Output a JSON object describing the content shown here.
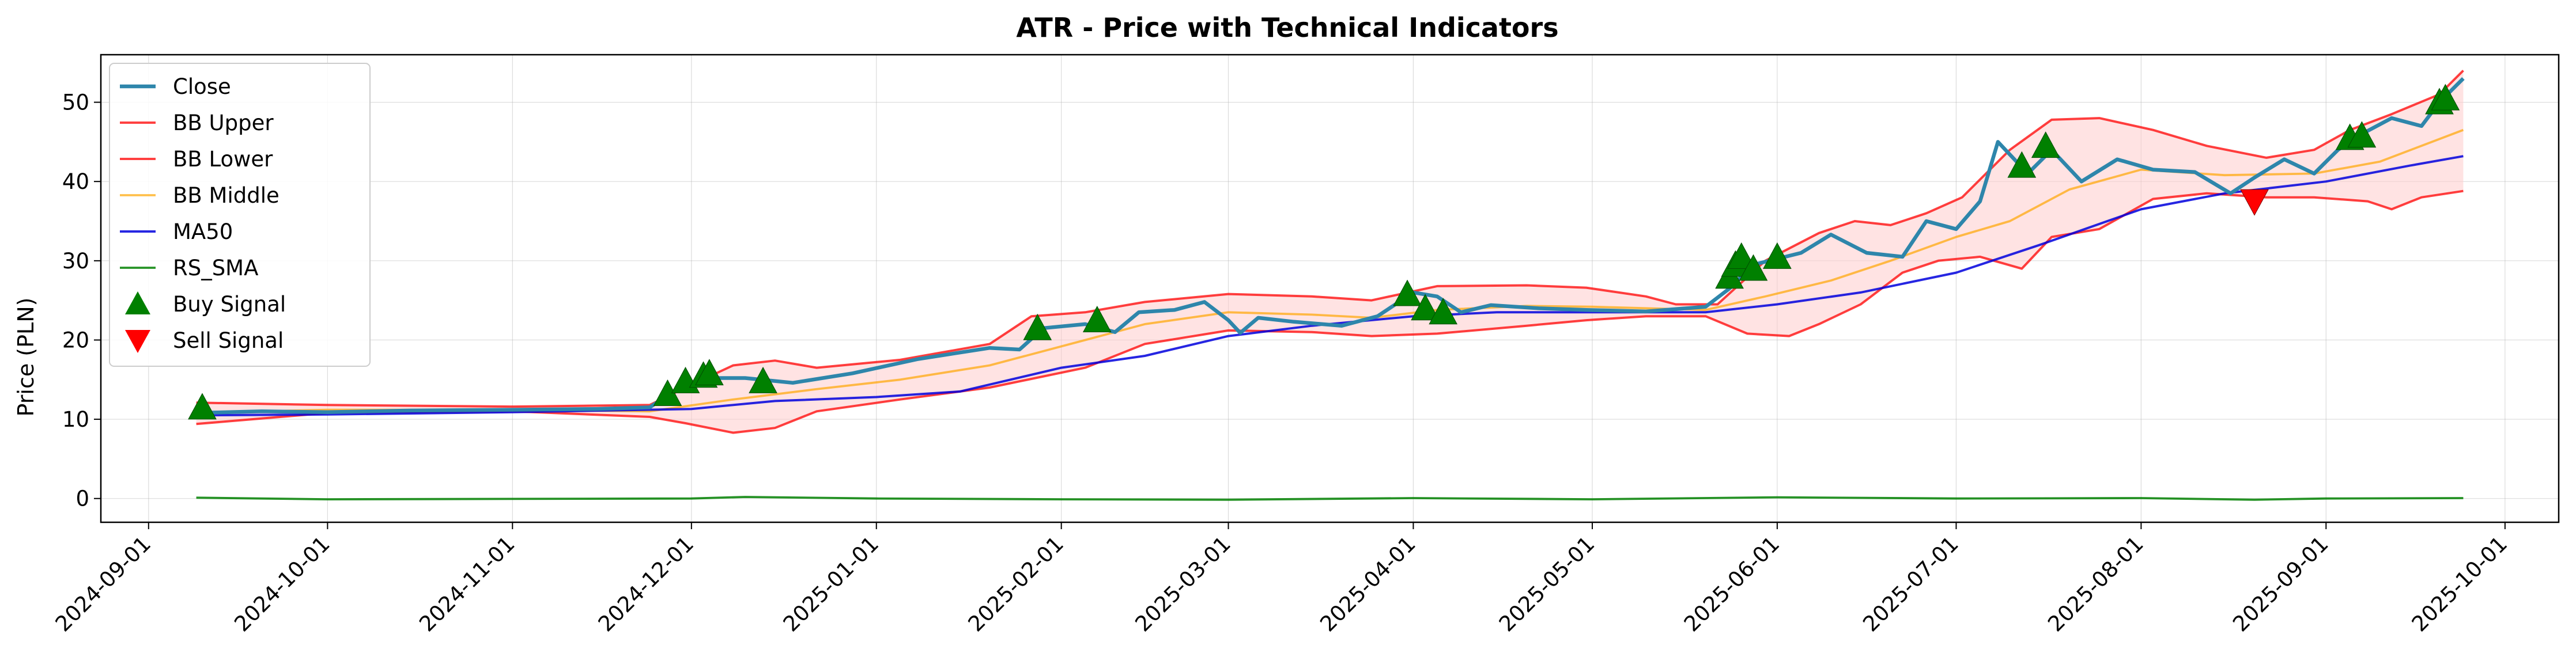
{
  "chart_data": {
    "type": "line",
    "title": "ATR - Price with Technical Indicators",
    "xlabel": "",
    "ylabel": "Price (PLN)",
    "x_start": "2024-09-01",
    "xlim": [
      "2024-08-24",
      "2025-10-10"
    ],
    "ylim": [
      -3,
      56
    ],
    "yticks": [
      0,
      10,
      20,
      30,
      40,
      50
    ],
    "xticks": [
      "2024-09-01",
      "2024-10-01",
      "2024-11-01",
      "2024-12-01",
      "2025-01-01",
      "2025-02-01",
      "2025-03-01",
      "2025-04-01",
      "2025-05-01",
      "2025-06-01",
      "2025-07-01",
      "2025-08-01",
      "2025-09-01",
      "2025-10-01"
    ],
    "grid": true,
    "legend_position": "upper-left",
    "colors": {
      "close": "#2e86ab",
      "bb_upper": "#ff0000",
      "bb_lower": "#ff0000",
      "bb_middle": "#ffa500",
      "ma50": "#0000dd",
      "rs_sma": "#008000",
      "band_fill": "#ffcccc",
      "buy": "#008000",
      "sell": "#ff0000"
    },
    "legend": [
      {
        "label": "Close",
        "key": "close",
        "kind": "line"
      },
      {
        "label": "BB Upper",
        "key": "bb_upper",
        "kind": "line"
      },
      {
        "label": "BB Lower",
        "key": "bb_lower",
        "kind": "line"
      },
      {
        "label": "BB Middle",
        "key": "bb_middle",
        "kind": "line"
      },
      {
        "label": "MA50",
        "key": "ma50",
        "kind": "line"
      },
      {
        "label": "RS_SMA",
        "key": "rs_sma",
        "kind": "line"
      },
      {
        "label": "Buy Signal",
        "key": "buy",
        "kind": "up"
      },
      {
        "label": "Sell Signal",
        "key": "sell",
        "kind": "down"
      }
    ],
    "series": [
      {
        "name": "Close",
        "key": "close",
        "points": [
          [
            "2024-09-09",
            10.8
          ],
          [
            "2024-09-20",
            11.0
          ],
          [
            "2024-10-01",
            10.9
          ],
          [
            "2024-10-15",
            11.1
          ],
          [
            "2024-11-01",
            11.2
          ],
          [
            "2024-11-15",
            11.3
          ],
          [
            "2024-11-24",
            11.5
          ],
          [
            "2024-11-28",
            13.5
          ],
          [
            "2024-12-03",
            15.2
          ],
          [
            "2024-12-10",
            15.2
          ],
          [
            "2024-12-18",
            14.6
          ],
          [
            "2024-12-28",
            15.8
          ],
          [
            "2025-01-08",
            17.6
          ],
          [
            "2025-01-20",
            19.0
          ],
          [
            "2025-01-25",
            18.8
          ],
          [
            "2025-01-29",
            21.5
          ],
          [
            "2025-02-05",
            22.0
          ],
          [
            "2025-02-10",
            21.0
          ],
          [
            "2025-02-14",
            23.5
          ],
          [
            "2025-02-20",
            23.8
          ],
          [
            "2025-02-25",
            24.8
          ],
          [
            "2025-03-01",
            22.5
          ],
          [
            "2025-03-03",
            20.9
          ],
          [
            "2025-03-06",
            22.8
          ],
          [
            "2025-03-12",
            22.3
          ],
          [
            "2025-03-20",
            21.8
          ],
          [
            "2025-03-26",
            23.0
          ],
          [
            "2025-04-01",
            26.0
          ],
          [
            "2025-04-05",
            25.5
          ],
          [
            "2025-04-09",
            23.5
          ],
          [
            "2025-04-14",
            24.4
          ],
          [
            "2025-04-22",
            24.0
          ],
          [
            "2025-04-30",
            23.8
          ],
          [
            "2025-05-10",
            23.6
          ],
          [
            "2025-05-20",
            24.2
          ],
          [
            "2025-05-24",
            26.5
          ],
          [
            "2025-05-28",
            29.5
          ],
          [
            "2025-06-05",
            31.0
          ],
          [
            "2025-06-10",
            33.3
          ],
          [
            "2025-06-16",
            31.0
          ],
          [
            "2025-06-22",
            30.5
          ],
          [
            "2025-06-26",
            35.0
          ],
          [
            "2025-07-01",
            34.0
          ],
          [
            "2025-07-05",
            37.5
          ],
          [
            "2025-07-08",
            45.0
          ],
          [
            "2025-07-13",
            41.0
          ],
          [
            "2025-07-17",
            44.0
          ],
          [
            "2025-07-22",
            40.0
          ],
          [
            "2025-07-28",
            42.8
          ],
          [
            "2025-08-03",
            41.5
          ],
          [
            "2025-08-10",
            41.2
          ],
          [
            "2025-08-16",
            38.5
          ],
          [
            "2025-08-20",
            40.5
          ],
          [
            "2025-08-25",
            42.8
          ],
          [
            "2025-08-30",
            41.0
          ],
          [
            "2025-09-03",
            44.0
          ],
          [
            "2025-09-07",
            46.0
          ],
          [
            "2025-09-12",
            48.0
          ],
          [
            "2025-09-17",
            47.0
          ],
          [
            "2025-09-20",
            50.0
          ],
          [
            "2025-09-24",
            53.0
          ]
        ]
      },
      {
        "name": "BB Upper",
        "key": "bb_upper",
        "points": [
          [
            "2024-09-09",
            12.1
          ],
          [
            "2024-10-01",
            11.8
          ],
          [
            "2024-11-01",
            11.6
          ],
          [
            "2024-11-24",
            11.8
          ],
          [
            "2024-11-30",
            14.0
          ],
          [
            "2024-12-08",
            16.8
          ],
          [
            "2024-12-15",
            17.4
          ],
          [
            "2024-12-22",
            16.5
          ],
          [
            "2025-01-05",
            17.5
          ],
          [
            "2025-01-20",
            19.5
          ],
          [
            "2025-01-27",
            23.0
          ],
          [
            "2025-02-05",
            23.5
          ],
          [
            "2025-02-15",
            24.8
          ],
          [
            "2025-03-01",
            25.8
          ],
          [
            "2025-03-15",
            25.5
          ],
          [
            "2025-03-25",
            25.0
          ],
          [
            "2025-04-05",
            26.8
          ],
          [
            "2025-04-20",
            26.9
          ],
          [
            "2025-04-30",
            26.6
          ],
          [
            "2025-05-10",
            25.5
          ],
          [
            "2025-05-15",
            24.5
          ],
          [
            "2025-05-22",
            24.5
          ],
          [
            "2025-05-30",
            30.0
          ],
          [
            "2025-06-08",
            33.5
          ],
          [
            "2025-06-14",
            35.0
          ],
          [
            "2025-06-20",
            34.5
          ],
          [
            "2025-06-26",
            36.0
          ],
          [
            "2025-07-02",
            38.0
          ],
          [
            "2025-07-10",
            44.0
          ],
          [
            "2025-07-17",
            47.8
          ],
          [
            "2025-07-25",
            48.0
          ],
          [
            "2025-08-03",
            46.5
          ],
          [
            "2025-08-12",
            44.5
          ],
          [
            "2025-08-22",
            43.0
          ],
          [
            "2025-08-30",
            44.0
          ],
          [
            "2025-09-05",
            46.5
          ],
          [
            "2025-09-12",
            48.5
          ],
          [
            "2025-09-20",
            51.0
          ],
          [
            "2025-09-24",
            54.0
          ]
        ]
      },
      {
        "name": "BB Lower",
        "key": "bb_lower",
        "points": [
          [
            "2024-09-09",
            9.4
          ],
          [
            "2024-10-01",
            10.8
          ],
          [
            "2024-11-01",
            11.0
          ],
          [
            "2024-11-24",
            10.3
          ],
          [
            "2024-11-30",
            9.5
          ],
          [
            "2024-12-08",
            8.3
          ],
          [
            "2024-12-15",
            8.9
          ],
          [
            "2024-12-22",
            11.0
          ],
          [
            "2025-01-05",
            12.5
          ],
          [
            "2025-01-20",
            14.0
          ],
          [
            "2025-02-05",
            16.5
          ],
          [
            "2025-02-15",
            19.5
          ],
          [
            "2025-03-01",
            21.2
          ],
          [
            "2025-03-15",
            21.0
          ],
          [
            "2025-03-25",
            20.5
          ],
          [
            "2025-04-05",
            20.8
          ],
          [
            "2025-04-20",
            21.8
          ],
          [
            "2025-04-30",
            22.5
          ],
          [
            "2025-05-10",
            23.0
          ],
          [
            "2025-05-20",
            23.0
          ],
          [
            "2025-05-27",
            20.8
          ],
          [
            "2025-06-03",
            20.5
          ],
          [
            "2025-06-08",
            22.0
          ],
          [
            "2025-06-15",
            24.5
          ],
          [
            "2025-06-22",
            28.5
          ],
          [
            "2025-06-28",
            30.0
          ],
          [
            "2025-07-05",
            30.5
          ],
          [
            "2025-07-12",
            29.0
          ],
          [
            "2025-07-17",
            33.0
          ],
          [
            "2025-07-25",
            34.0
          ],
          [
            "2025-08-03",
            37.8
          ],
          [
            "2025-08-12",
            38.5
          ],
          [
            "2025-08-22",
            38.0
          ],
          [
            "2025-08-30",
            38.0
          ],
          [
            "2025-09-08",
            37.5
          ],
          [
            "2025-09-12",
            36.5
          ],
          [
            "2025-09-17",
            38.0
          ],
          [
            "2025-09-24",
            38.8
          ]
        ]
      },
      {
        "name": "BB Middle",
        "key": "bb_middle",
        "points": [
          [
            "2024-09-09",
            10.8
          ],
          [
            "2024-10-01",
            11.2
          ],
          [
            "2024-11-01",
            11.2
          ],
          [
            "2024-11-24",
            11.0
          ],
          [
            "2024-12-08",
            12.5
          ],
          [
            "2024-12-22",
            13.8
          ],
          [
            "2025-01-05",
            15.0
          ],
          [
            "2025-01-20",
            16.8
          ],
          [
            "2025-02-05",
            20.0
          ],
          [
            "2025-02-15",
            22.0
          ],
          [
            "2025-03-01",
            23.5
          ],
          [
            "2025-03-15",
            23.2
          ],
          [
            "2025-03-25",
            22.8
          ],
          [
            "2025-04-05",
            23.8
          ],
          [
            "2025-04-20",
            24.3
          ],
          [
            "2025-05-01",
            24.2
          ],
          [
            "2025-05-20",
            23.8
          ],
          [
            "2025-05-30",
            25.5
          ],
          [
            "2025-06-10",
            27.5
          ],
          [
            "2025-06-20",
            30.0
          ],
          [
            "2025-07-01",
            33.0
          ],
          [
            "2025-07-10",
            35.0
          ],
          [
            "2025-07-20",
            39.0
          ],
          [
            "2025-08-01",
            41.5
          ],
          [
            "2025-08-15",
            40.8
          ],
          [
            "2025-08-30",
            41.0
          ],
          [
            "2025-09-10",
            42.5
          ],
          [
            "2025-09-24",
            46.5
          ]
        ]
      },
      {
        "name": "MA50",
        "key": "ma50",
        "points": [
          [
            "2024-09-09",
            10.5
          ],
          [
            "2024-10-01",
            10.6
          ],
          [
            "2024-11-01",
            10.9
          ],
          [
            "2024-12-01",
            11.3
          ],
          [
            "2024-12-15",
            12.3
          ],
          [
            "2025-01-01",
            12.8
          ],
          [
            "2025-01-15",
            13.5
          ],
          [
            "2025-02-01",
            16.5
          ],
          [
            "2025-02-15",
            18.0
          ],
          [
            "2025-03-01",
            20.5
          ],
          [
            "2025-03-15",
            21.8
          ],
          [
            "2025-04-01",
            23.0
          ],
          [
            "2025-04-15",
            23.5
          ],
          [
            "2025-05-01",
            23.5
          ],
          [
            "2025-05-20",
            23.5
          ],
          [
            "2025-06-01",
            24.5
          ],
          [
            "2025-06-15",
            26.0
          ],
          [
            "2025-07-01",
            28.5
          ],
          [
            "2025-07-15",
            32.0
          ],
          [
            "2025-08-01",
            36.5
          ],
          [
            "2025-08-15",
            38.5
          ],
          [
            "2025-09-01",
            40.0
          ],
          [
            "2025-09-15",
            42.0
          ],
          [
            "2025-09-24",
            43.2
          ]
        ]
      },
      {
        "name": "RS_SMA",
        "key": "rs_sma",
        "points": [
          [
            "2024-09-09",
            0.1
          ],
          [
            "2024-10-01",
            -0.1
          ],
          [
            "2024-11-01",
            -0.05
          ],
          [
            "2024-12-01",
            0.0
          ],
          [
            "2024-12-10",
            0.2
          ],
          [
            "2025-01-01",
            0.0
          ],
          [
            "2025-02-01",
            -0.1
          ],
          [
            "2025-03-01",
            -0.15
          ],
          [
            "2025-04-01",
            0.05
          ],
          [
            "2025-05-01",
            -0.1
          ],
          [
            "2025-06-01",
            0.15
          ],
          [
            "2025-07-01",
            0.0
          ],
          [
            "2025-08-01",
            0.05
          ],
          [
            "2025-08-20",
            -0.15
          ],
          [
            "2025-09-01",
            0.0
          ],
          [
            "2025-09-24",
            0.05
          ]
        ]
      }
    ],
    "buy_signals": [
      [
        "2024-09-10",
        11.5
      ],
      [
        "2024-11-27",
        13.2
      ],
      [
        "2024-11-30",
        14.8
      ],
      [
        "2024-12-03",
        15.5
      ],
      [
        "2024-12-04",
        15.8
      ],
      [
        "2024-12-13",
        14.8
      ],
      [
        "2025-01-28",
        21.5
      ],
      [
        "2025-02-07",
        22.5
      ],
      [
        "2025-03-31",
        25.8
      ],
      [
        "2025-04-03",
        24.0
      ],
      [
        "2025-04-06",
        23.5
      ],
      [
        "2025-05-24",
        28.0
      ],
      [
        "2025-05-25",
        29.5
      ],
      [
        "2025-05-26",
        30.5
      ],
      [
        "2025-05-28",
        29.0
      ],
      [
        "2025-06-01",
        30.5
      ],
      [
        "2025-07-12",
        42.0
      ],
      [
        "2025-07-16",
        44.5
      ],
      [
        "2025-09-05",
        45.5
      ],
      [
        "2025-09-07",
        45.8
      ],
      [
        "2025-09-20",
        50.0
      ],
      [
        "2025-09-21",
        50.5
      ]
    ],
    "sell_signals": [
      [
        "2025-08-20",
        37.5
      ]
    ]
  }
}
